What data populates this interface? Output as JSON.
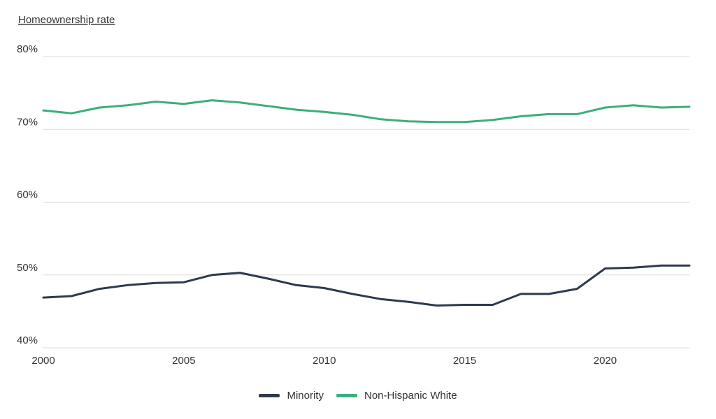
{
  "chart_data": {
    "type": "line",
    "ylabel": "Homeownership rate",
    "xlabel": "",
    "ylim": [
      40,
      80
    ],
    "xlim": [
      2000,
      2023
    ],
    "y_ticks": [
      "40%",
      "50%",
      "60%",
      "70%",
      "80%"
    ],
    "y_tick_values": [
      40,
      50,
      60,
      70,
      80
    ],
    "x_ticks": [
      "2000",
      "2005",
      "2010",
      "2015",
      "2020"
    ],
    "x_tick_values": [
      2000,
      2005,
      2010,
      2015,
      2020
    ],
    "grid": true,
    "legend_position": "bottom-center",
    "x": [
      2000,
      2001,
      2002,
      2003,
      2004,
      2005,
      2006,
      2007,
      2008,
      2009,
      2010,
      2011,
      2012,
      2013,
      2014,
      2015,
      2016,
      2017,
      2018,
      2019,
      2020,
      2021,
      2022,
      2023
    ],
    "series": [
      {
        "name": "Minority",
        "color": "#2e3a4c",
        "values": [
          46.9,
          47.1,
          48.1,
          48.6,
          48.9,
          49.0,
          50.0,
          50.3,
          49.5,
          48.6,
          48.2,
          47.4,
          46.7,
          46.3,
          45.8,
          45.9,
          45.9,
          47.4,
          47.4,
          48.1,
          50.9,
          51.0,
          51.3,
          51.3
        ]
      },
      {
        "name": "Non-Hispanic White",
        "color": "#3caf7a",
        "values": [
          72.6,
          72.2,
          73.0,
          73.3,
          73.8,
          73.5,
          74.0,
          73.7,
          73.2,
          72.7,
          72.4,
          72.0,
          71.4,
          71.1,
          71.0,
          71.0,
          71.3,
          71.8,
          72.1,
          72.1,
          73.0,
          73.3,
          73.0,
          73.1
        ]
      }
    ]
  }
}
